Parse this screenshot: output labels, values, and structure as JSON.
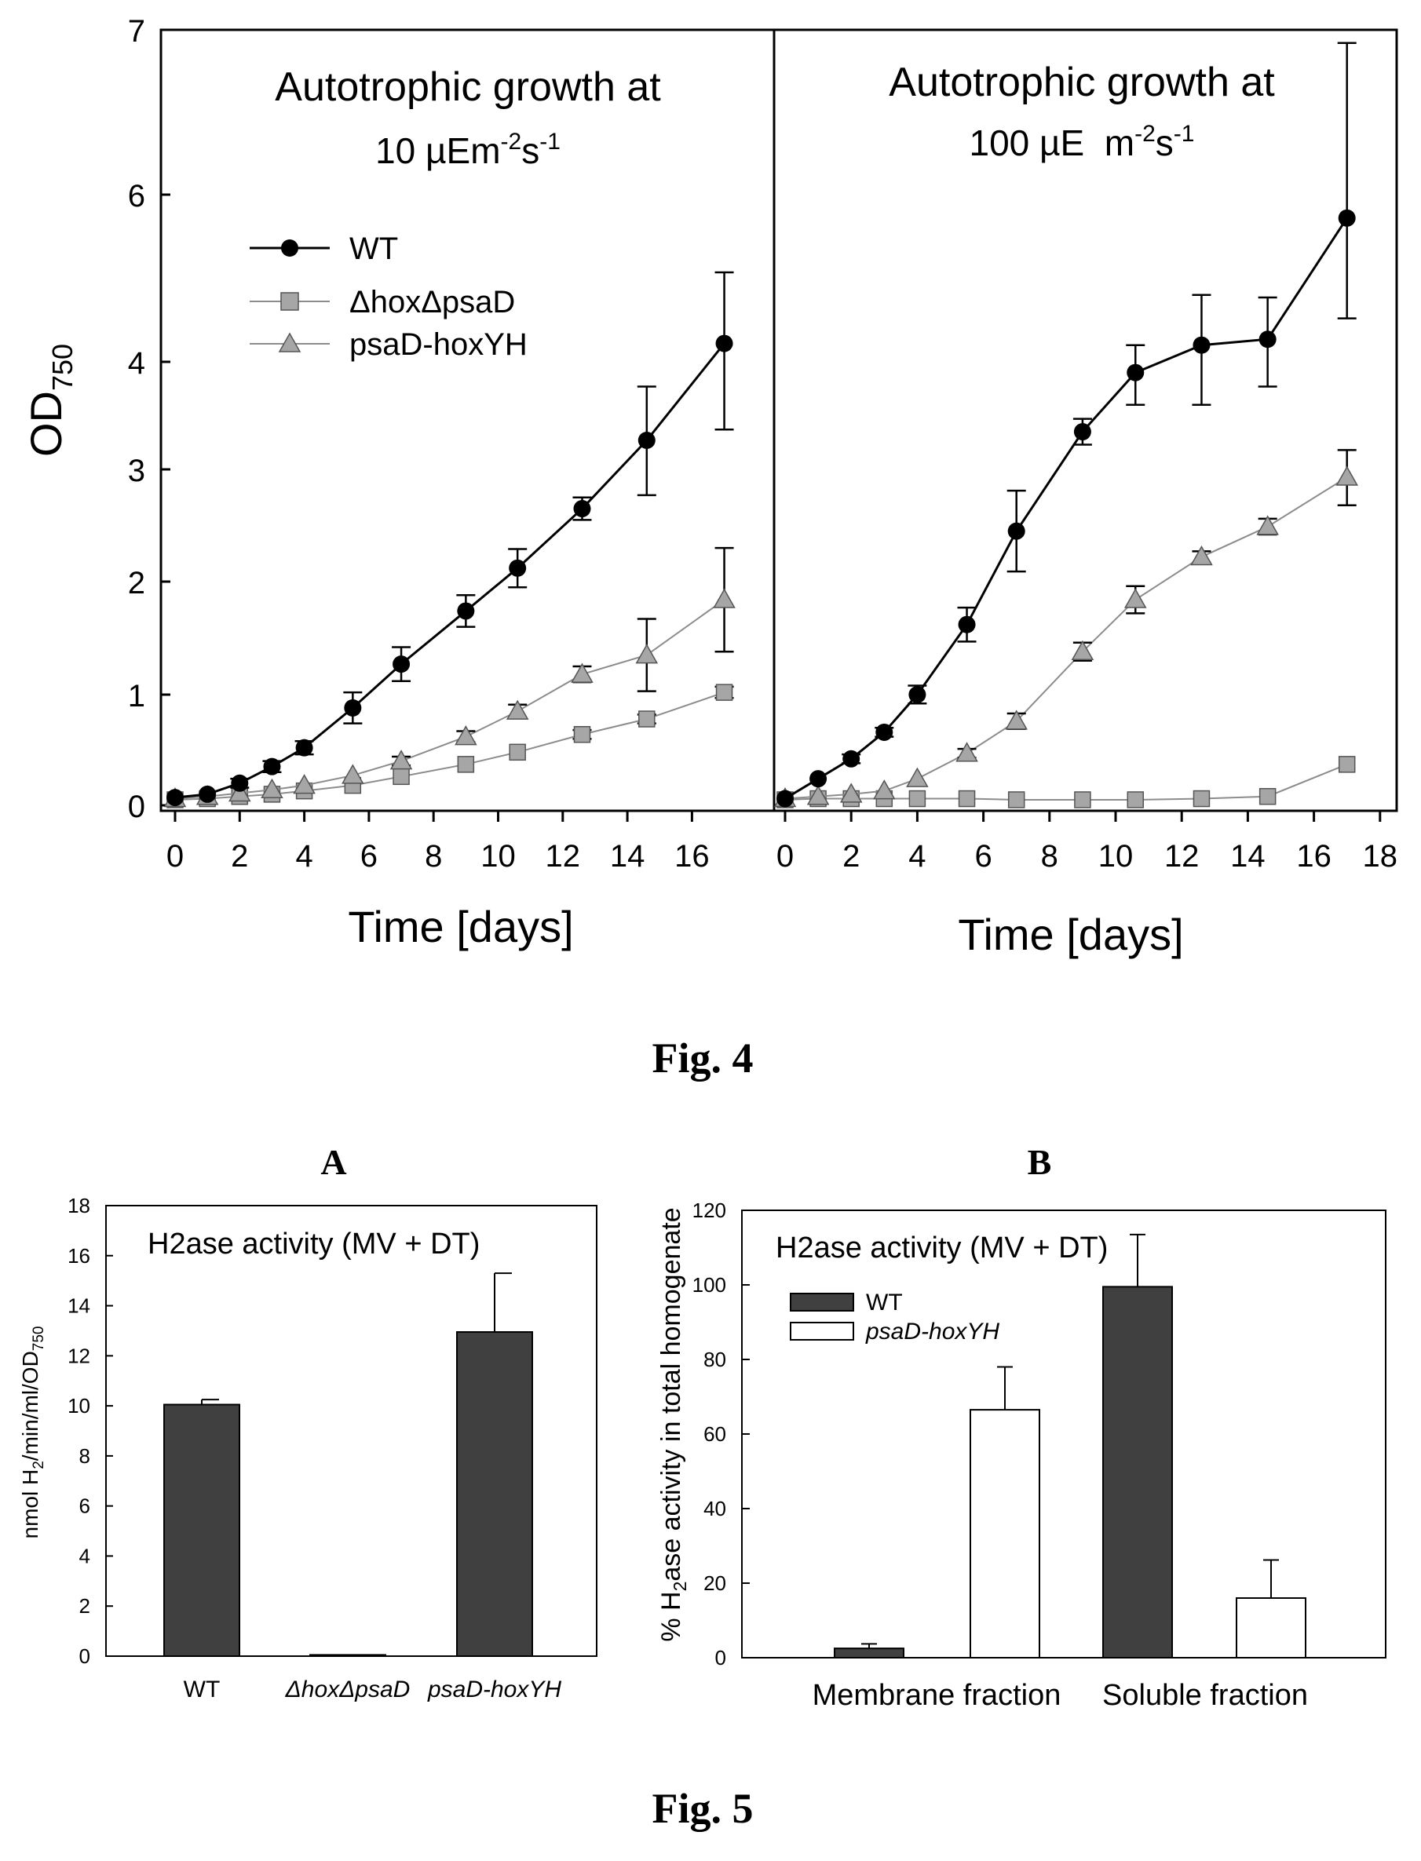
{
  "fig4": {
    "caption": "Fig. 4",
    "ylabel_main": "OD",
    "ylabel_sub": "750",
    "xlabel": "Time [days]",
    "y_ticks": [
      "0",
      "1",
      "2",
      "3",
      "4",
      "6",
      "7"
    ],
    "x_ticks_left": [
      "0",
      "2",
      "4",
      "6",
      "8",
      "10",
      "12",
      "14",
      "16"
    ],
    "x_ticks_right": [
      "0",
      "2",
      "4",
      "6",
      "8",
      "10",
      "12",
      "14",
      "16",
      "18"
    ],
    "legend": [
      "WT",
      "ΔhoxΔpsaD",
      "psaD-hoxYH"
    ],
    "left_title_line1": "Autotrophic growth at",
    "left_title_line2": "10 µEm",
    "left_title_exp1": "-2",
    "left_title_mid": "s",
    "left_title_exp2": "-1",
    "right_title_line1": "Autotrophic growth at",
    "right_title_line2": "100 µE  m",
    "right_title_exp1": "-2",
    "right_title_mid": "s",
    "right_title_exp2": "-1"
  },
  "fig5": {
    "caption": "Fig. 5",
    "panel_a_label": "A",
    "panel_b_label": "B",
    "a_title_h": "H",
    "a_title_sub": "2",
    "a_title_rest": "ase activity (MV + DT)",
    "a_ylabel_prefix": "nmol H",
    "a_ylabel_sub": "2",
    "a_ylabel_mid": "/min/ml/OD",
    "a_ylabel_sub2": "750",
    "a_y_ticks": [
      "0",
      "2",
      "4",
      "6",
      "8",
      "10",
      "12",
      "14",
      "16",
      "18"
    ],
    "a_categories": [
      "WT",
      "ΔhoxΔpsaD",
      "psaD-hoxYH"
    ],
    "b_title_h": "H",
    "b_title_sub": "2",
    "b_title_rest": "ase activity (MV + DT)",
    "b_ylabel_prefix": "% H",
    "b_ylabel_sub": "2",
    "b_ylabel_rest": "ase activity in total homogenate",
    "b_y_ticks": [
      "0",
      "20",
      "40",
      "60",
      "80",
      "100",
      "120"
    ],
    "b_categories": [
      "Membrane fraction",
      "Soluble fraction"
    ],
    "b_legend": [
      "WT",
      "psaD-hoxYH"
    ]
  },
  "colors": {
    "wt_line": "#000000",
    "marker_gray": "#a6a6a6",
    "line_gray": "#8c8c8c",
    "bar_dark": "#404040",
    "bar_white": "#ffffff"
  },
  "chart_data": [
    {
      "type": "line",
      "title": "Autotrophic growth at 10 µEm-2s-1",
      "xlabel": "Time [days]",
      "ylabel": "OD750",
      "xlim": [
        0,
        17
      ],
      "y_ticks": [
        0,
        1,
        2,
        3,
        4,
        6,
        7
      ],
      "y_scale": "broken",
      "legend_position": "top-left",
      "series": [
        {
          "name": "WT",
          "marker": "circle",
          "x": [
            0,
            1,
            2,
            3,
            4,
            5.5,
            7,
            9,
            10.6,
            12.6,
            14.6,
            17
          ],
          "y": [
            0.07,
            0.1,
            0.2,
            0.35,
            0.52,
            0.88,
            1.27,
            1.74,
            2.12,
            2.65,
            3.27,
            4.22
          ],
          "err": [
            0.03,
            0.03,
            0.04,
            0.05,
            0.06,
            0.14,
            0.15,
            0.14,
            0.17,
            0.1,
            0.5,
            0.85
          ]
        },
        {
          "name": "ΔhoxΔpsaD",
          "marker": "square",
          "x": [
            0,
            1,
            2,
            3,
            4,
            5.5,
            7,
            9,
            10.6,
            12.6,
            14.6,
            17
          ],
          "y": [
            0.05,
            0.06,
            0.08,
            0.1,
            0.13,
            0.18,
            0.26,
            0.37,
            0.48,
            0.64,
            0.78,
            1.02
          ],
          "err": [
            0.01,
            0.01,
            0.01,
            0.01,
            0.02,
            0.02,
            0.03,
            0.03,
            0.03,
            0.04,
            0.04,
            0.05
          ]
        },
        {
          "name": "psaD-hoxYH",
          "marker": "triangle",
          "x": [
            0,
            1,
            2,
            3,
            4,
            5.5,
            7,
            9,
            10.6,
            12.6,
            14.6,
            17
          ],
          "y": [
            0.06,
            0.08,
            0.11,
            0.14,
            0.18,
            0.27,
            0.4,
            0.62,
            0.85,
            1.18,
            1.35,
            1.84
          ],
          "err": [
            0.01,
            0.01,
            0.02,
            0.02,
            0.02,
            0.03,
            0.04,
            0.05,
            0.06,
            0.07,
            0.32,
            0.46
          ]
        }
      ]
    },
    {
      "type": "line",
      "title": "Autotrophic growth at 100 µE m-2s-1",
      "xlabel": "Time [days]",
      "ylabel": "OD750",
      "xlim": [
        0,
        18
      ],
      "y_ticks": [
        0,
        1,
        2,
        3,
        4,
        6,
        7
      ],
      "y_scale": "broken",
      "series": [
        {
          "name": "WT",
          "marker": "circle",
          "x": [
            0,
            1,
            2,
            3,
            4,
            5.5,
            7,
            9,
            10.6,
            12.6,
            14.6,
            17
          ],
          "y": [
            0.06,
            0.24,
            0.42,
            0.66,
            1.0,
            1.62,
            2.45,
            3.35,
            3.9,
            4.2,
            4.27,
            5.72
          ],
          "err": [
            0.02,
            0.03,
            0.04,
            0.04,
            0.08,
            0.15,
            0.36,
            0.12,
            0.3,
            0.6,
            0.5,
            1.2
          ]
        },
        {
          "name": "ΔhoxΔpsaD",
          "marker": "square",
          "x": [
            0,
            1,
            2,
            3,
            4,
            5.5,
            7,
            9,
            10.6,
            12.6,
            14.6,
            17
          ],
          "y": [
            0.05,
            0.06,
            0.06,
            0.06,
            0.06,
            0.06,
            0.05,
            0.05,
            0.05,
            0.06,
            0.08,
            0.37
          ],
          "err": [
            0.01,
            0.01,
            0.01,
            0.01,
            0.01,
            0.01,
            0.01,
            0.01,
            0.01,
            0.01,
            0.01,
            0.02
          ]
        },
        {
          "name": "psaD-hoxYH",
          "marker": "triangle",
          "x": [
            0,
            1,
            2,
            3,
            4,
            5.5,
            7,
            9,
            10.6,
            12.6,
            14.6,
            17
          ],
          "y": [
            0.06,
            0.08,
            0.1,
            0.13,
            0.24,
            0.47,
            0.76,
            1.38,
            1.84,
            2.22,
            2.49,
            2.93
          ],
          "err": [
            0.01,
            0.01,
            0.01,
            0.02,
            0.03,
            0.04,
            0.07,
            0.08,
            0.12,
            0.05,
            0.07,
            0.25
          ]
        }
      ]
    },
    {
      "type": "bar",
      "title": "H2ase activity (MV + DT)",
      "ylabel": "nmol H2/min/ml/OD750",
      "ylim": [
        0,
        18
      ],
      "categories": [
        "WT",
        "ΔhoxΔpsaD",
        "psaD-hoxYH"
      ],
      "values": [
        10.05,
        0.05,
        12.95
      ],
      "err": [
        0.2,
        0,
        2.35
      ]
    },
    {
      "type": "bar",
      "title": "H2ase activity (MV + DT)",
      "ylabel": "% H2ase activity in total homogenate",
      "ylim": [
        0,
        120
      ],
      "categories": [
        "Membrane fraction",
        "Soluble fraction"
      ],
      "legend_position": "top-left",
      "series": [
        {
          "name": "WT",
          "values": [
            2.5,
            99.5
          ],
          "err": [
            1.2,
            14
          ]
        },
        {
          "name": "psaD-hoxYH",
          "values": [
            66.5,
            16
          ],
          "err": [
            11.5,
            10.2
          ]
        }
      ]
    }
  ]
}
